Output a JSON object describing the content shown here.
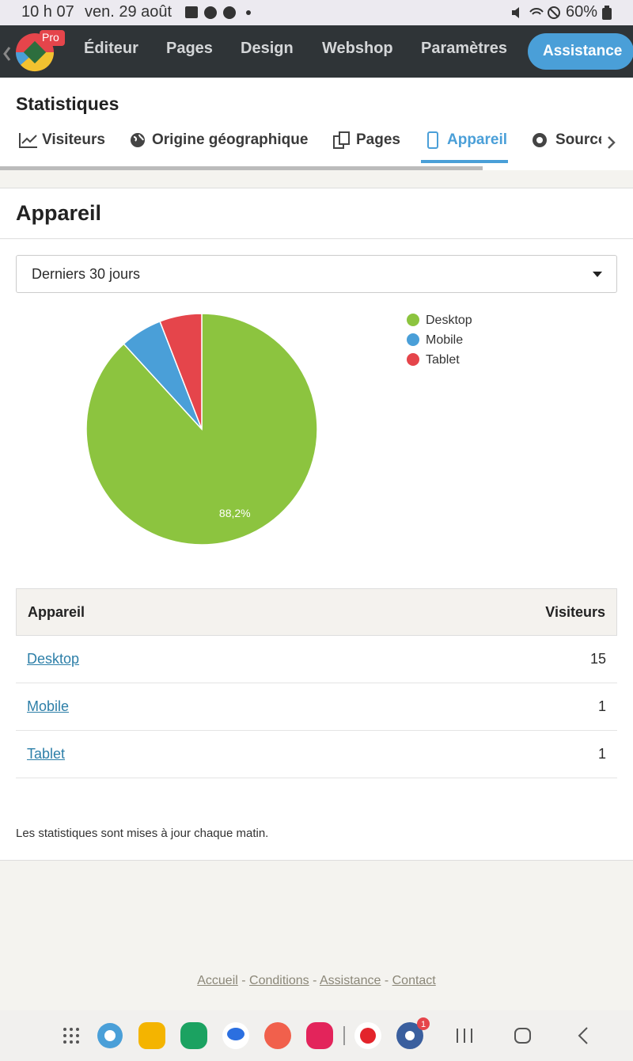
{
  "status_bar": {
    "time": "10 h 07",
    "date": "ven. 29 août",
    "battery": "60%"
  },
  "nav": {
    "badge": "Pro",
    "items": [
      "Éditeur",
      "Pages",
      "Design",
      "Webshop",
      "Paramètres"
    ],
    "button": "Assistance"
  },
  "header": {
    "title": "Statistiques",
    "tabs": [
      "Visiteurs",
      "Origine géographique",
      "Pages",
      "Appareil",
      "Sources"
    ]
  },
  "section": {
    "title": "Appareil",
    "period": "Derniers 30 jours"
  },
  "chart_data": {
    "type": "pie",
    "categories": [
      "Desktop",
      "Mobile",
      "Tablet"
    ],
    "values": [
      88.2,
      5.9,
      5.9
    ],
    "value_labels": [
      "88,2%",
      null,
      null
    ],
    "colors": [
      "#8cc43f",
      "#4a9fd8",
      "#e5454b"
    ],
    "legend": "right"
  },
  "table": {
    "header": [
      "Appareil",
      "Visiteurs"
    ],
    "rows": [
      [
        "Desktop",
        15
      ],
      [
        "Mobile",
        1
      ],
      [
        "Tablet",
        1
      ]
    ]
  },
  "note": "Les statistiques sont mises à jour chaque matin.",
  "footer": {
    "links": [
      "Accueil",
      "Conditions",
      "Assistance",
      "Contact"
    ],
    "separator": "-"
  },
  "dock": {
    "badge": "1"
  }
}
